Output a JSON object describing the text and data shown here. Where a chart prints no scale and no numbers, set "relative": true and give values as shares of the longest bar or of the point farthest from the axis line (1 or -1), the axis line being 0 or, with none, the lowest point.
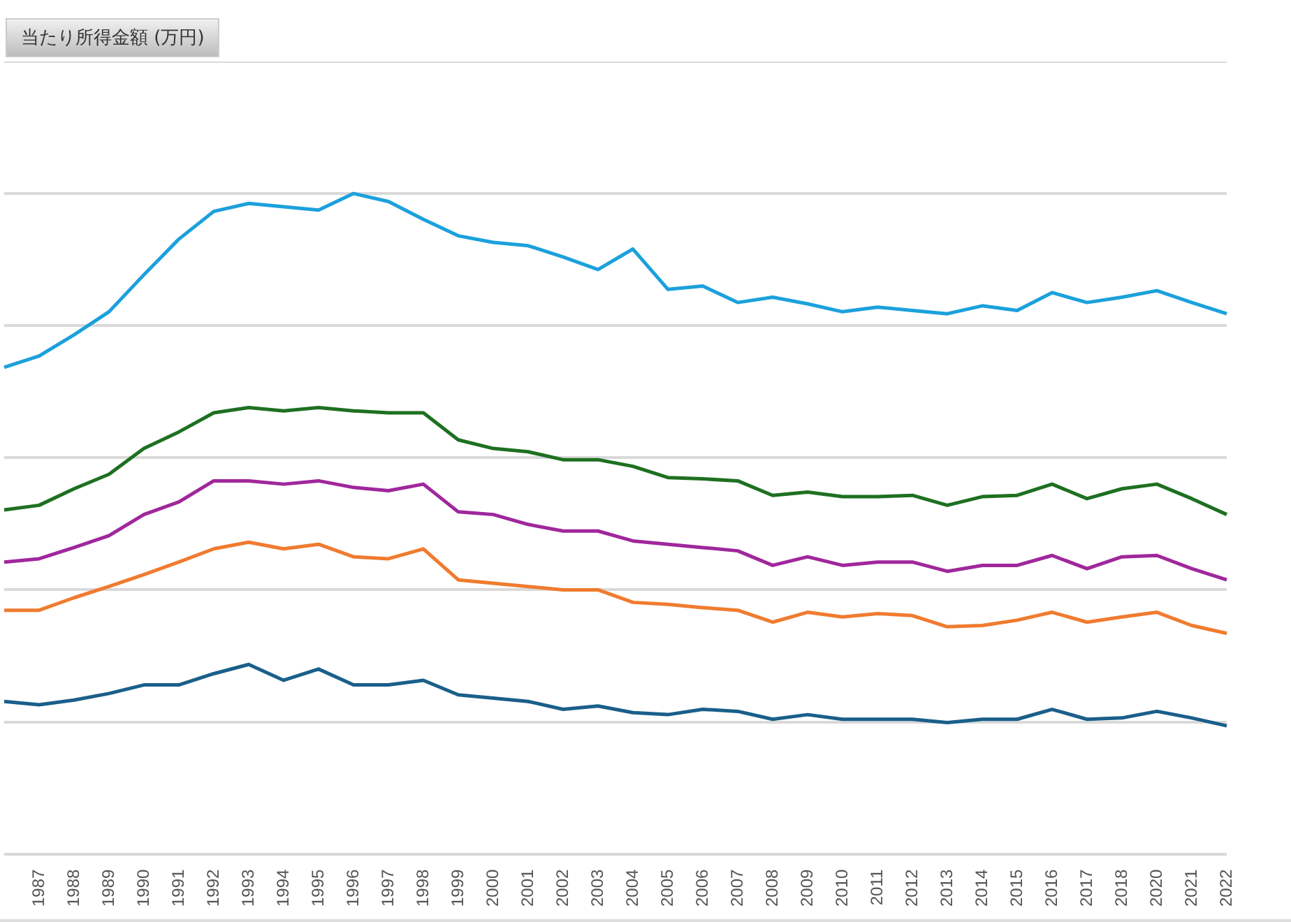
{
  "chart_data": {
    "type": "line",
    "title": "当たり所得金額 (万円)",
    "relative": true,
    "grid": "y",
    "marker": "none",
    "line_style": "solid",
    "categories": [
      null,
      "1987",
      "1988",
      "1989",
      "1990",
      "1991",
      "1992",
      "1993",
      "1994",
      "1995",
      "1996",
      "1997",
      "1998",
      "1999",
      "2000",
      "2001",
      "2002",
      "2003",
      "2004",
      "2005",
      "2006",
      "2007",
      "2008",
      "2009",
      "2010",
      "2011",
      "2012",
      "2013",
      "2014",
      "2015",
      "2016",
      "2017",
      "2018",
      "2020",
      "2021",
      "2022"
    ],
    "series": [
      {
        "color": "#1a5f8a",
        "values": [
          0.231,
          0.226,
          0.233,
          0.243,
          0.256,
          0.256,
          0.273,
          0.287,
          0.263,
          0.28,
          0.256,
          0.256,
          0.263,
          0.241,
          0.236,
          0.231,
          0.219,
          0.224,
          0.214,
          0.211,
          0.219,
          0.216,
          0.204,
          0.211,
          0.204,
          0.204,
          0.204,
          0.199,
          0.204,
          0.204,
          0.219,
          0.204,
          0.206,
          0.216,
          0.206,
          0.194
        ]
      },
      {
        "color": "#f07b2f",
        "values": [
          0.369,
          0.369,
          0.388,
          0.405,
          0.423,
          0.442,
          0.462,
          0.472,
          0.462,
          0.469,
          0.45,
          0.447,
          0.462,
          0.415,
          0.41,
          0.405,
          0.4,
          0.4,
          0.381,
          0.378,
          0.373,
          0.369,
          0.351,
          0.366,
          0.359,
          0.364,
          0.361,
          0.344,
          0.346,
          0.354,
          0.366,
          0.351,
          0.359,
          0.366,
          0.346,
          0.334
        ]
      },
      {
        "color": "#1e7021",
        "values": [
          0.521,
          0.528,
          0.553,
          0.575,
          0.614,
          0.639,
          0.668,
          0.676,
          0.671,
          0.676,
          0.671,
          0.668,
          0.668,
          0.627,
          0.614,
          0.609,
          0.597,
          0.597,
          0.587,
          0.57,
          0.568,
          0.565,
          0.543,
          0.548,
          0.541,
          0.541,
          0.543,
          0.528,
          0.541,
          0.543,
          0.56,
          0.538,
          0.553,
          0.56,
          0.538,
          0.514
        ]
      },
      {
        "color": "#1ba1dc",
        "values": [
          0.737,
          0.754,
          0.786,
          0.821,
          0.877,
          0.931,
          0.973,
          0.985,
          0.98,
          0.975,
          1,
          0.988,
          0.961,
          0.936,
          0.926,
          0.921,
          0.904,
          0.885,
          0.916,
          0.855,
          0.86,
          0.835,
          0.843,
          0.833,
          0.821,
          0.828,
          0.823,
          0.818,
          0.83,
          0.823,
          0.85,
          0.835,
          0.843,
          0.853,
          0.835,
          0.818
        ]
      },
      {
        "color": "#a0279c",
        "values": [
          0.442,
          0.447,
          0.464,
          0.482,
          0.514,
          0.533,
          0.565,
          0.565,
          0.56,
          0.565,
          0.555,
          0.55,
          0.56,
          0.518,
          0.514,
          0.499,
          0.489,
          0.489,
          0.474,
          0.469,
          0.464,
          0.459,
          0.437,
          0.45,
          0.437,
          0.442,
          0.442,
          0.428,
          0.437,
          0.437,
          0.452,
          0.432,
          0.45,
          0.452,
          0.432,
          0.415
        ]
      }
    ]
  }
}
